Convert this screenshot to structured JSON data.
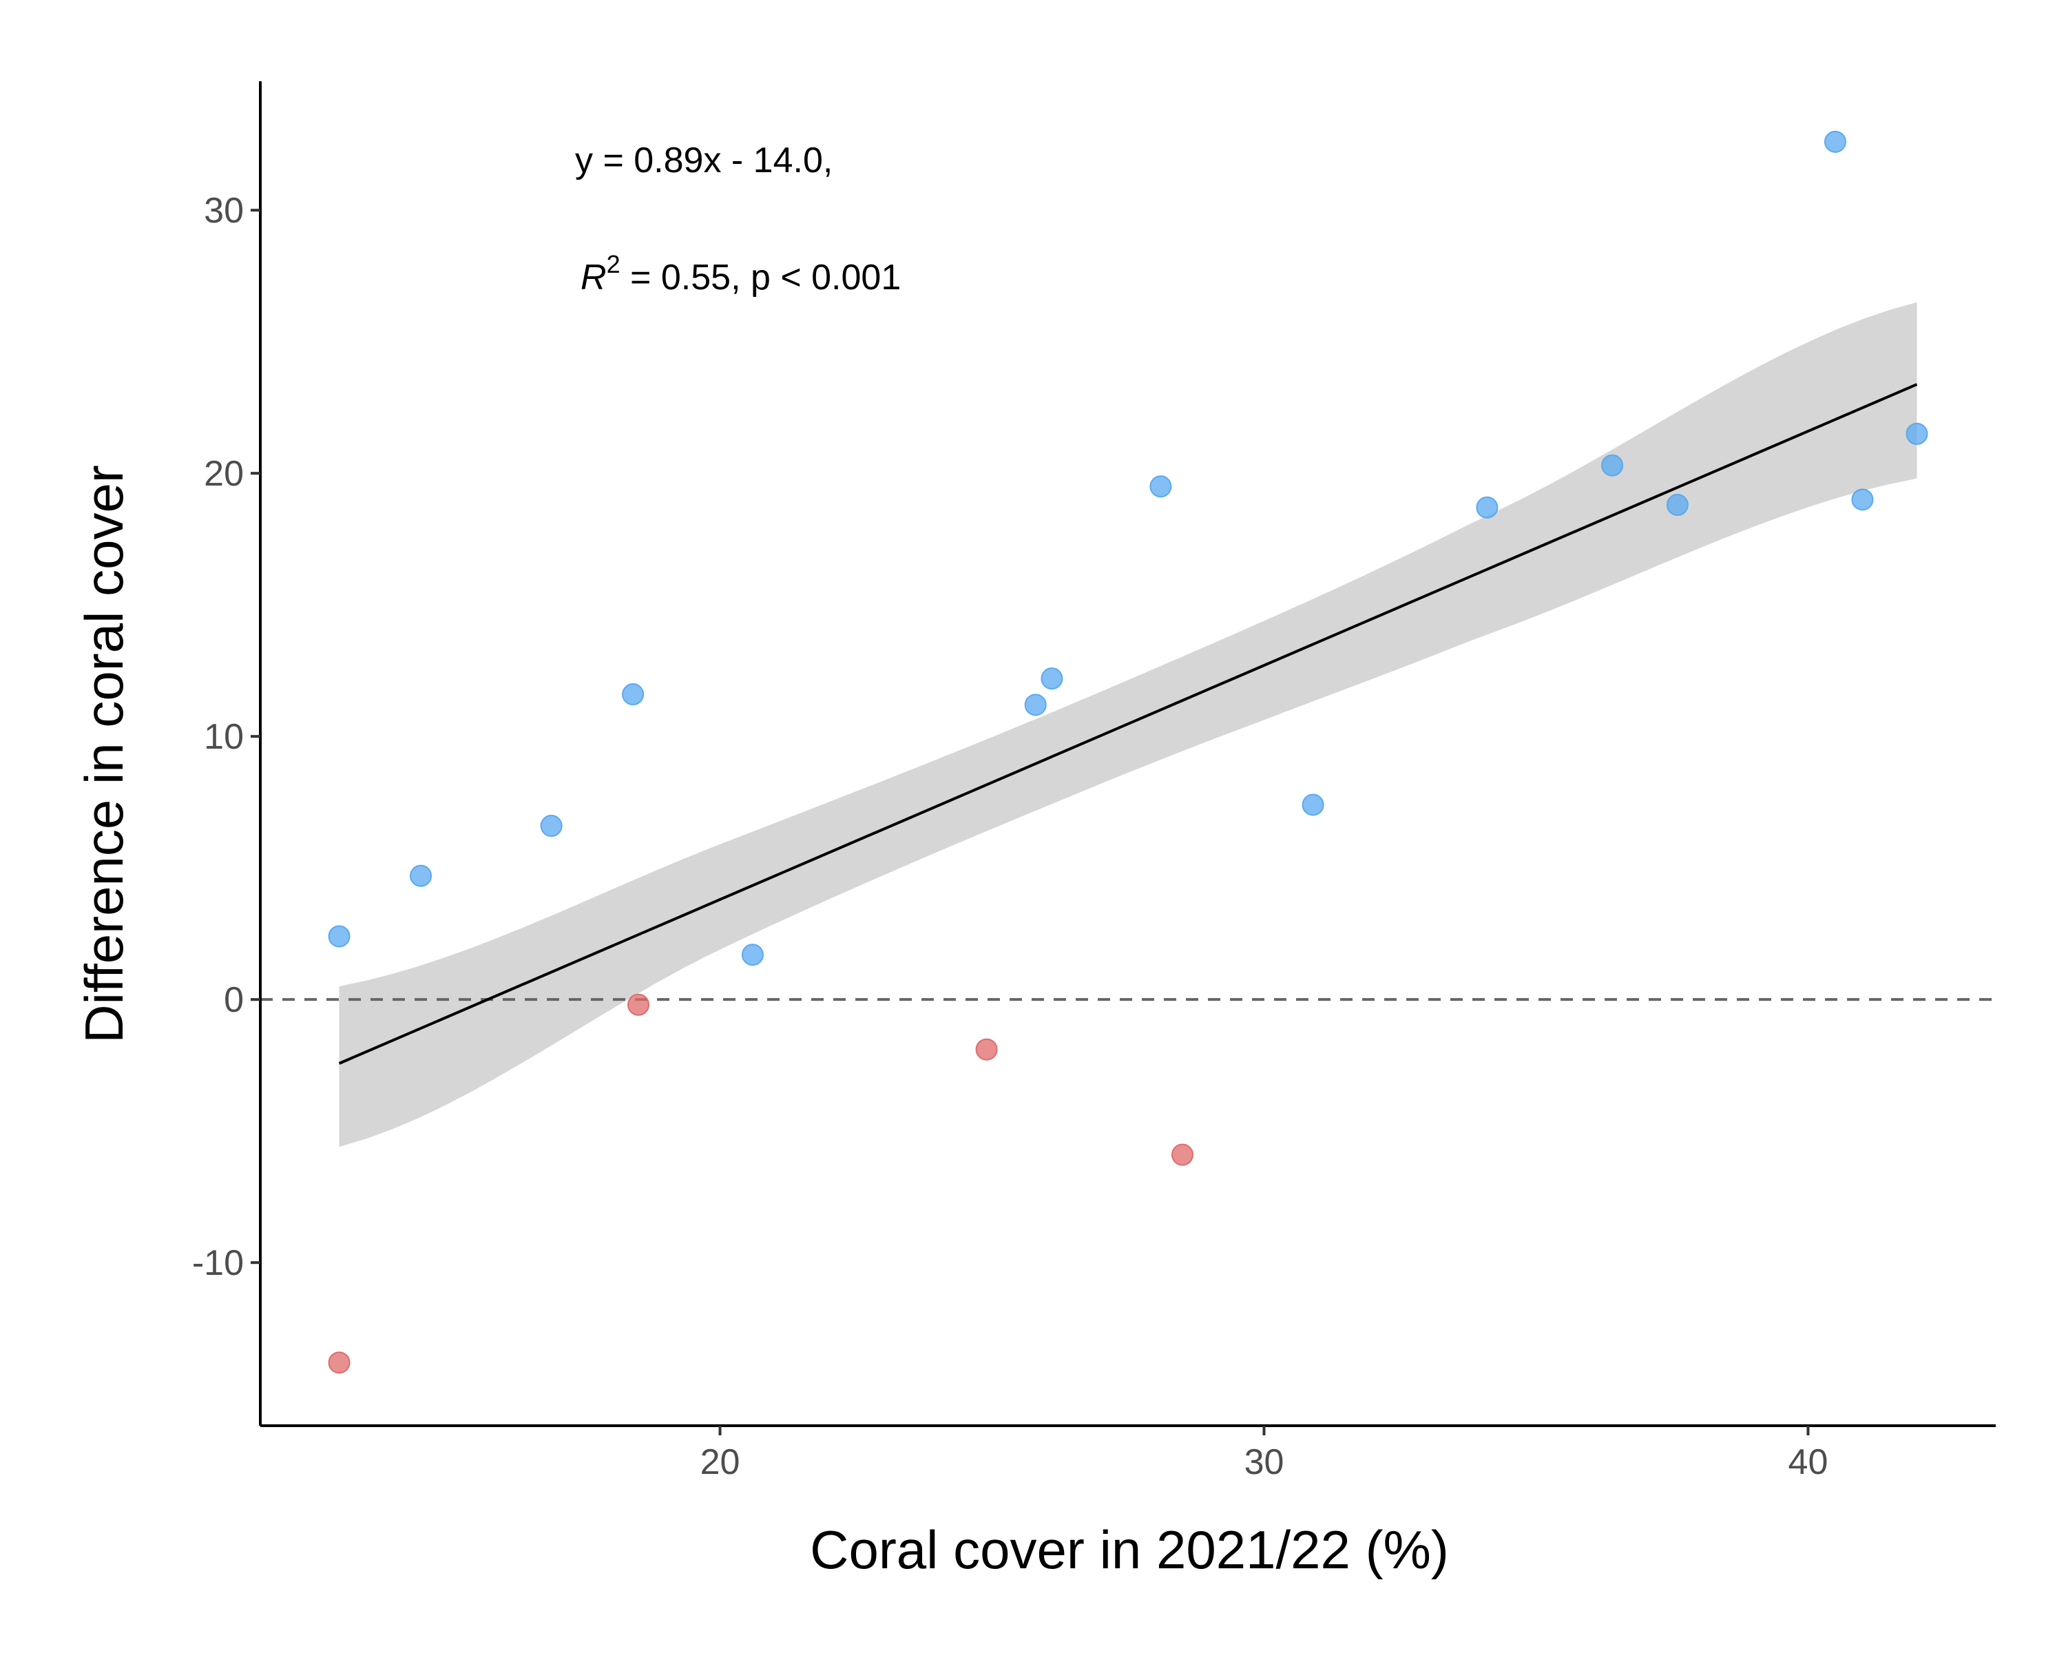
{
  "chart_data": {
    "type": "scatter",
    "xlabel": "Coral cover in 2021/22 (%)",
    "ylabel": "Difference in coral cover",
    "xlim": [
      11.55,
      43.45
    ],
    "ylim": [
      -16.2,
      34.9
    ],
    "x_ticks": [
      20,
      30,
      40
    ],
    "y_ticks": [
      -10,
      0,
      10,
      20,
      30
    ],
    "x_tick_labels": [
      "20",
      "30",
      "40"
    ],
    "y_tick_labels": [
      "-10",
      "0",
      "10",
      "20",
      "30"
    ],
    "reference_line": {
      "y": 0,
      "style": "dashed"
    },
    "regression": {
      "slope": 0.89,
      "intercept": -14.0,
      "x_range": [
        13.0,
        42.0
      ],
      "confidence_band": [
        {
          "x": 13.0,
          "lower": -5.6,
          "upper": 0.5
        },
        {
          "x": 20.0,
          "lower": 1.9,
          "upper": 5.9
        },
        {
          "x": 27.0,
          "lower": 8.2,
          "upper": 11.7
        },
        {
          "x": 34.0,
          "lower": 13.8,
          "upper": 18.3
        },
        {
          "x": 42.0,
          "lower": 19.8,
          "upper": 26.5
        }
      ]
    },
    "equation_text": "y = 0.89x - 14.0,",
    "r2_symbol": "R",
    "r2_superscript": "2",
    "r2_rest": " = 0.55, p < 0.001",
    "grid": false,
    "points": [
      {
        "x": 13.0,
        "y": 2.4,
        "color": "#5aa9f0"
      },
      {
        "x": 14.5,
        "y": 4.7,
        "color": "#5aa9f0"
      },
      {
        "x": 16.9,
        "y": 6.6,
        "color": "#5aa9f0"
      },
      {
        "x": 18.4,
        "y": 11.6,
        "color": "#5aa9f0"
      },
      {
        "x": 20.6,
        "y": 1.7,
        "color": "#5aa9f0"
      },
      {
        "x": 25.8,
        "y": 11.2,
        "color": "#5aa9f0"
      },
      {
        "x": 26.1,
        "y": 12.2,
        "color": "#5aa9f0"
      },
      {
        "x": 28.1,
        "y": 19.5,
        "color": "#5aa9f0"
      },
      {
        "x": 30.9,
        "y": 7.4,
        "color": "#5aa9f0"
      },
      {
        "x": 34.1,
        "y": 18.7,
        "color": "#5aa9f0"
      },
      {
        "x": 36.4,
        "y": 20.3,
        "color": "#5aa9f0"
      },
      {
        "x": 37.6,
        "y": 18.8,
        "color": "#5aa9f0"
      },
      {
        "x": 40.5,
        "y": 32.6,
        "color": "#5aa9f0"
      },
      {
        "x": 41.0,
        "y": 19.0,
        "color": "#5aa9f0"
      },
      {
        "x": 42.0,
        "y": 21.5,
        "color": "#5aa9f0"
      },
      {
        "x": 13.0,
        "y": -13.8,
        "color": "#e06b6b"
      },
      {
        "x": 18.5,
        "y": -0.2,
        "color": "#e06b6b"
      },
      {
        "x": 24.9,
        "y": -1.9,
        "color": "#e06b6b"
      },
      {
        "x": 28.5,
        "y": -5.9,
        "color": "#e06b6b"
      }
    ],
    "colors": {
      "positive_points": "#5aa9f0",
      "negative_points": "#e06b6b",
      "band": "#d6d6d6",
      "fit_line": "#000000",
      "reference_line": "#666666"
    }
  }
}
